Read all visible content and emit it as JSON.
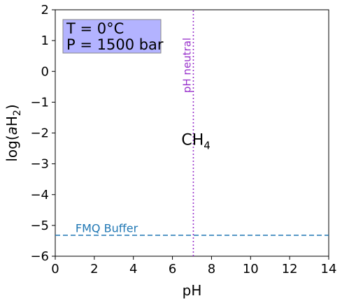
{
  "chart_data": {
    "type": "line",
    "xlabel": "pH",
    "ylabel": {
      "prefix": "log(",
      "var": "a",
      "main": "H",
      "sub": "2",
      "suffix": ")"
    },
    "xlim": [
      0,
      14
    ],
    "ylim": [
      -6,
      2
    ],
    "xticks": [
      0,
      2,
      4,
      6,
      8,
      10,
      12,
      14
    ],
    "yticks": [
      2,
      1,
      0,
      -1,
      -2,
      -3,
      -4,
      -5,
      -6
    ],
    "conditions": {
      "temperature": "T = 0°C",
      "pressure": "P = 1500 bar",
      "box_color": "#b3b3ff"
    },
    "fields": [
      {
        "main": "CH",
        "sub": "4",
        "x": 7.2,
        "y": -2.2
      }
    ],
    "series": [
      {
        "name": "FMQ Buffer",
        "style": "dashed",
        "color": "#1f77b4",
        "x": [
          0,
          14
        ],
        "y": [
          -5.32,
          -5.32
        ],
        "label_x": 1.0,
        "label_y": -5.08
      },
      {
        "name": "pH neutral",
        "style": "dotted",
        "color": "#9933cc",
        "x": [
          7.07,
          7.07
        ],
        "y": [
          -6,
          2
        ],
        "label_x": 7.07,
        "label_y": -0.7
      }
    ]
  }
}
